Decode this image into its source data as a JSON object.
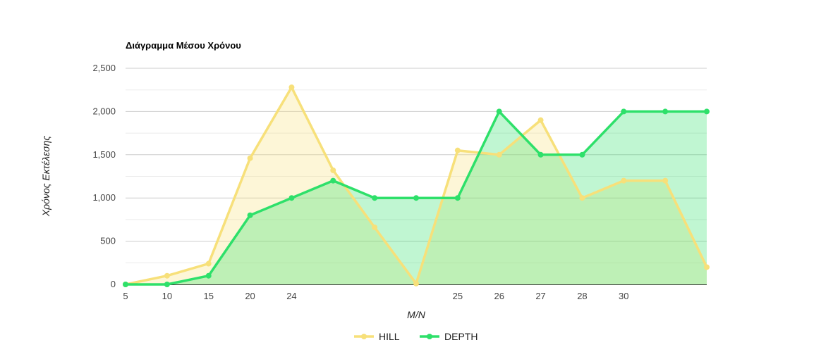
{
  "chart_data": {
    "type": "area",
    "title": "Διάγραμμα Μέσου Χρόνου",
    "xlabel": "M/N",
    "ylabel": "Χρόνος Εκτέλεσης",
    "ylim": [
      0,
      2500
    ],
    "yticks": [
      "0",
      "500",
      "1,000",
      "1,500",
      "2,000",
      "2,500"
    ],
    "y_tick_values": [
      0,
      500,
      1000,
      1500,
      2000,
      2500
    ],
    "categories": [
      "5",
      "10",
      "15",
      "20",
      "24",
      "",
      "",
      "",
      "25",
      "26",
      "27",
      "28",
      "30",
      "",
      ""
    ],
    "grid": true,
    "legend_position": "bottom",
    "series": [
      {
        "name": "HILL",
        "color": "#f7e07a",
        "values": [
          0,
          100,
          240,
          1460,
          2280,
          1320,
          660,
          10,
          1550,
          1500,
          1900,
          1000,
          1200,
          1200,
          200
        ]
      },
      {
        "name": "DEPTH",
        "color": "#2ee06a",
        "values": [
          0,
          0,
          100,
          800,
          1000,
          1200,
          1000,
          1000,
          1000,
          2000,
          1500,
          1500,
          2000,
          2000,
          2000
        ]
      }
    ]
  }
}
